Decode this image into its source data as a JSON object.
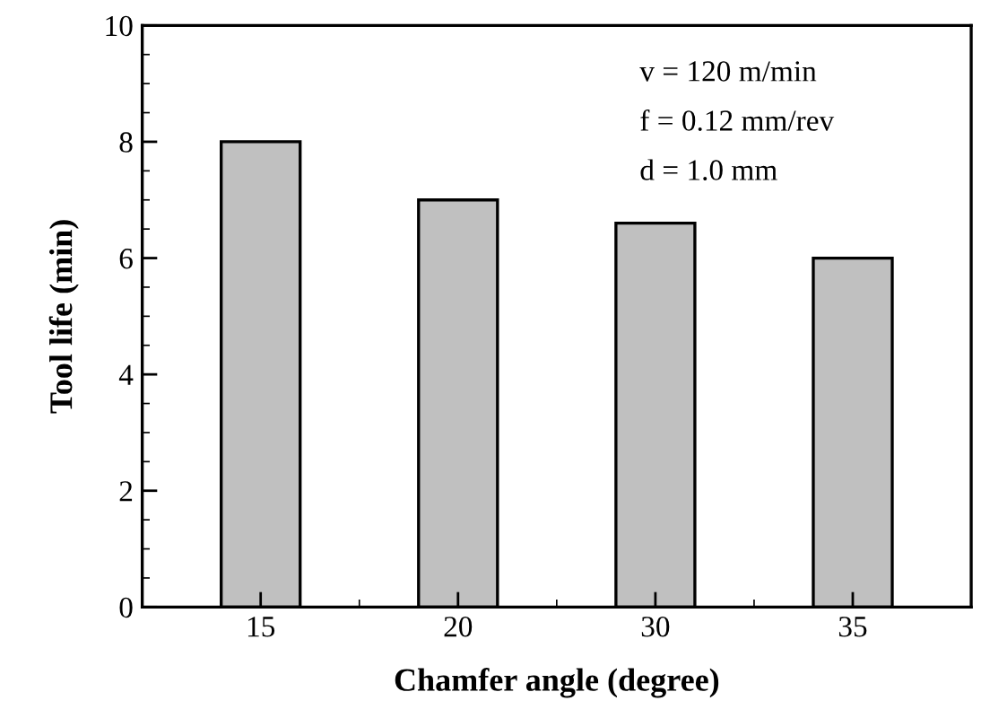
{
  "chart_data": {
    "type": "bar",
    "xlabel": "Chamfer angle (degree)",
    "ylabel": "Tool life (min)",
    "categories": [
      "15",
      "20",
      "30",
      "35"
    ],
    "values": [
      8,
      7,
      6.6,
      6
    ],
    "color": "#c0c0c0",
    "ylim": [
      0,
      10
    ],
    "yticks": [
      0,
      2,
      4,
      6,
      8,
      10
    ],
    "grid": false,
    "legend": false,
    "annotations": [
      "v = 120 m/min",
      "f = 0.12 mm/rev",
      "d = 1.0 mm"
    ]
  }
}
